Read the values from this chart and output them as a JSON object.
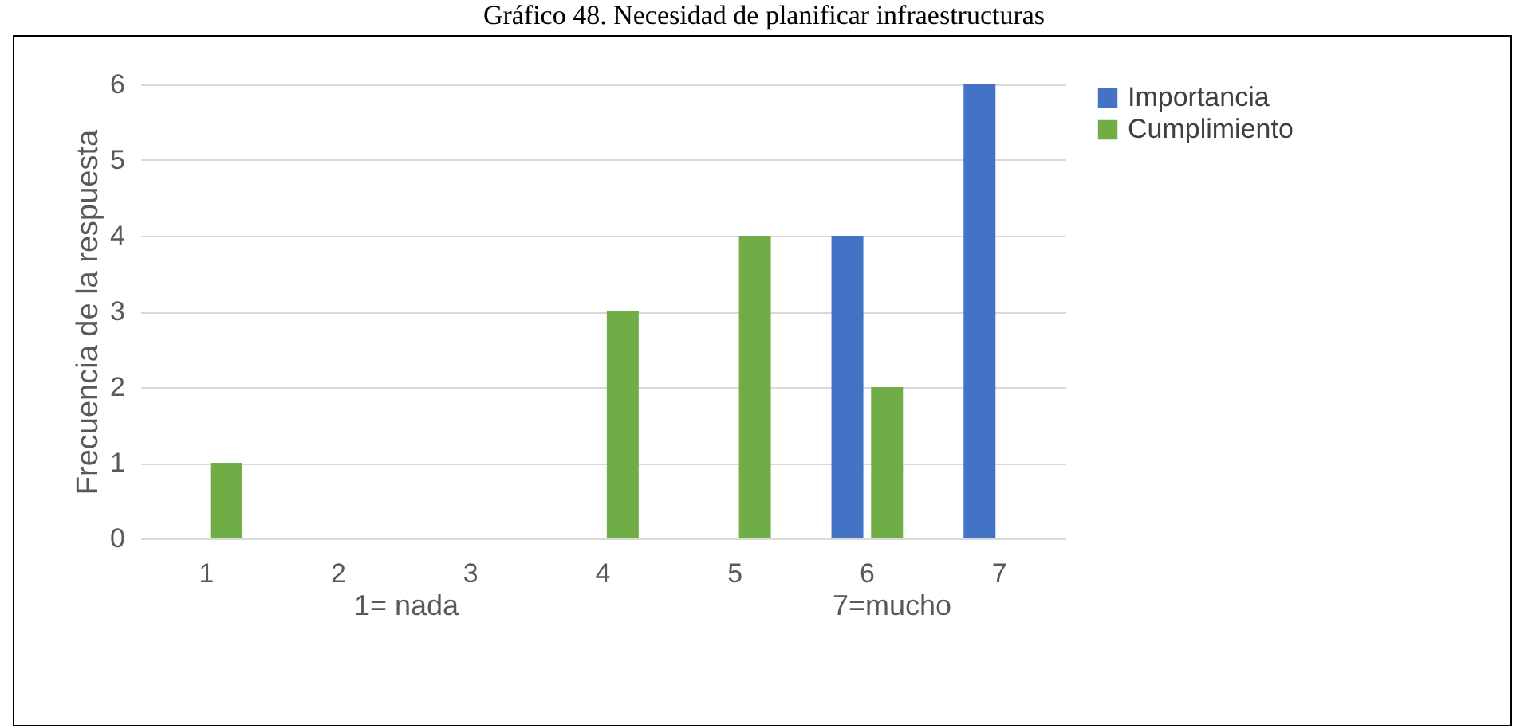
{
  "chart_data": {
    "type": "bar",
    "title": "Gráfico 48. Necesidad de planificar infraestructuras",
    "ylabel": "Frecuencia de la respuesta",
    "categories": [
      "1",
      "2",
      "3",
      "4",
      "5",
      "6",
      "7"
    ],
    "series": [
      {
        "name": "Importancia",
        "color": "#4472c4",
        "values": [
          0,
          0,
          0,
          0,
          0,
          4,
          6
        ]
      },
      {
        "name": "Cumplimiento",
        "color": "#70ad47",
        "values": [
          1,
          0,
          0,
          3,
          4,
          2,
          0
        ]
      }
    ],
    "ylim": [
      0,
      6
    ],
    "yticks": [
      0,
      1,
      2,
      3,
      4,
      5,
      6
    ],
    "grid": "y",
    "legend": "right",
    "annotations": [
      "1= nada",
      "7=mucho"
    ]
  }
}
